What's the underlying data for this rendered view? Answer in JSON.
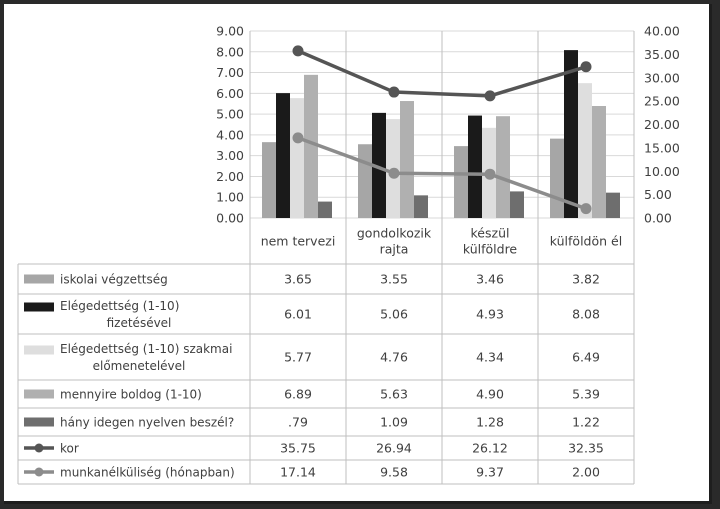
{
  "chart_data": {
    "type": "bar",
    "categories": [
      [
        "nem tervezi"
      ],
      [
        "gondolkozik",
        "rajta"
      ],
      [
        "készül",
        "külföldre"
      ],
      [
        "külföldön él"
      ]
    ],
    "y_left": {
      "min": 0,
      "max": 9,
      "step": 1,
      "labels": [
        "0.00",
        "1.00",
        "2.00",
        "3.00",
        "4.00",
        "5.00",
        "6.00",
        "7.00",
        "8.00",
        "9.00"
      ]
    },
    "y_right": {
      "min": 0,
      "max": 40,
      "step": 5,
      "labels": [
        "0.00",
        "5.00",
        "10.00",
        "15.00",
        "20.00",
        "25.00",
        "30.00",
        "35.00",
        "40.00"
      ]
    },
    "grid": true,
    "series": [
      {
        "name": [
          "iskolai végzettség"
        ],
        "kind": "bar",
        "axis": "left",
        "color": "#a6a6a6",
        "values": [
          3.65,
          3.55,
          3.46,
          3.82
        ],
        "labels": [
          "3.65",
          "3.55",
          "3.46",
          "3.82"
        ]
      },
      {
        "name": [
          "Elégedettség (1-10)",
          "fizetésével"
        ],
        "kind": "bar",
        "axis": "left",
        "color": "#1a1a1a",
        "values": [
          6.01,
          5.06,
          4.93,
          8.08
        ],
        "labels": [
          "6.01",
          "5.06",
          "4.93",
          "8.08"
        ]
      },
      {
        "name": [
          "Elégedettség (1-10) szakmai",
          "előmenetelével"
        ],
        "kind": "bar",
        "axis": "left",
        "color": "#dedede",
        "values": [
          5.77,
          4.76,
          4.34,
          6.49
        ],
        "labels": [
          "5.77",
          "4.76",
          "4.34",
          "6.49"
        ]
      },
      {
        "name": [
          "mennyire boldog (1-10)"
        ],
        "kind": "bar",
        "axis": "left",
        "color": "#b0b0b0",
        "values": [
          6.89,
          5.63,
          4.9,
          5.39
        ],
        "labels": [
          "6.89",
          "5.63",
          "4.90",
          "5.39"
        ]
      },
      {
        "name": [
          "hány idegen nyelven beszél?"
        ],
        "kind": "bar",
        "axis": "left",
        "color": "#6e6e6e",
        "values": [
          0.79,
          1.09,
          1.28,
          1.22
        ],
        "labels": [
          ".79",
          "1.09",
          "1.28",
          "1.22"
        ]
      },
      {
        "name": [
          "kor"
        ],
        "kind": "line",
        "axis": "right",
        "color": "#555555",
        "values": [
          35.75,
          26.94,
          26.12,
          32.35
        ],
        "labels": [
          "35.75",
          "26.94",
          "26.12",
          "32.35"
        ]
      },
      {
        "name": [
          "munkanélküliség (hónapban)"
        ],
        "kind": "line",
        "axis": "right",
        "color": "#8c8c8c",
        "values": [
          17.14,
          9.58,
          9.37,
          2.0
        ],
        "labels": [
          "17.14",
          "9.58",
          "9.37",
          "2.00"
        ]
      }
    ]
  }
}
